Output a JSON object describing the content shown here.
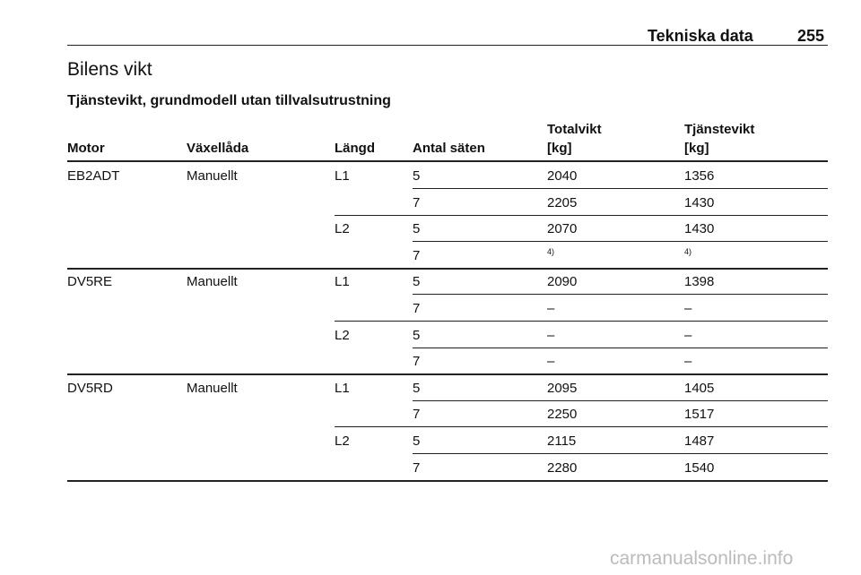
{
  "header": {
    "section": "Tekniska data",
    "page": "255"
  },
  "title": "Bilens vikt",
  "subtitle": "Tjänstevikt, grundmodell utan tillvalsutrustning",
  "table": {
    "columns": [
      [
        "Motor"
      ],
      [
        "Växellåda"
      ],
      [
        "Längd"
      ],
      [
        "Antal säten"
      ],
      [
        "Totalvikt",
        "[kg]"
      ],
      [
        "Tjänstevikt",
        "[kg]"
      ]
    ],
    "groups": [
      {
        "motor": "EB2ADT",
        "gearbox": "Manuellt",
        "lengths": [
          {
            "length": "L1",
            "rows": [
              {
                "seats": "5",
                "total": "2040",
                "service": "1356"
              },
              {
                "seats": "7",
                "total": "2205",
                "service": "1430"
              }
            ]
          },
          {
            "length": "L2",
            "rows": [
              {
                "seats": "5",
                "total": "2070",
                "service": "1430"
              },
              {
                "seats": "7",
                "total": "4)",
                "service": "4)"
              }
            ]
          }
        ]
      },
      {
        "motor": "DV5RE",
        "gearbox": "Manuellt",
        "lengths": [
          {
            "length": "L1",
            "rows": [
              {
                "seats": "5",
                "total": "2090",
                "service": "1398"
              },
              {
                "seats": "7",
                "total": "–",
                "service": "–"
              }
            ]
          },
          {
            "length": "L2",
            "rows": [
              {
                "seats": "5",
                "total": "–",
                "service": "–"
              },
              {
                "seats": "7",
                "total": "–",
                "service": "–"
              }
            ]
          }
        ]
      },
      {
        "motor": "DV5RD",
        "gearbox": "Manuellt",
        "lengths": [
          {
            "length": "L1",
            "rows": [
              {
                "seats": "5",
                "total": "2095",
                "service": "1405"
              },
              {
                "seats": "7",
                "total": "2250",
                "service": "1517"
              }
            ]
          },
          {
            "length": "L2",
            "rows": [
              {
                "seats": "5",
                "total": "2115",
                "service": "1487"
              },
              {
                "seats": "7",
                "total": "2280",
                "service": "1540"
              }
            ]
          }
        ]
      }
    ]
  },
  "watermark": "carmanualsonline.info"
}
